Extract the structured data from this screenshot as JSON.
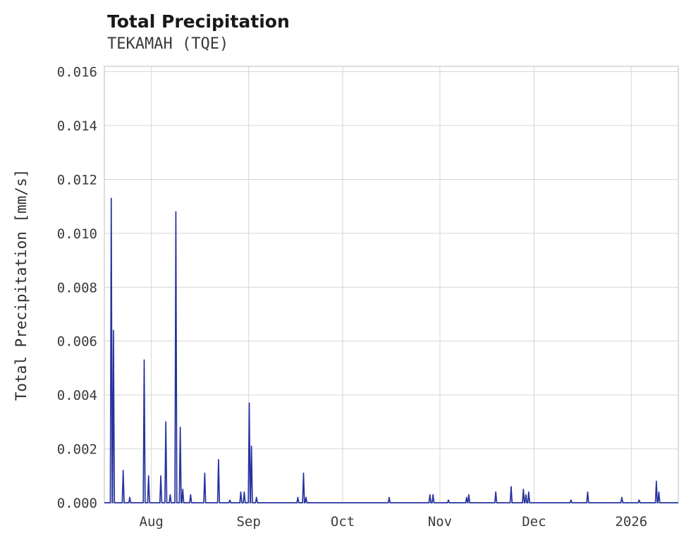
{
  "chart_data": {
    "type": "line",
    "title": "Total Precipitation",
    "subtitle": "TEKAMAH (TQE)",
    "ylabel": "Total Precipitation [mm/s]",
    "xlabel": "",
    "line_color": "#27339f",
    "grid_color": "#d6d6d6",
    "axis_color": "#c8c8c8",
    "text_color": "#3b3b3b",
    "grid": true,
    "legend": "none",
    "x_unit": "days from left edge of plot (mid-July 2025 to mid-January 2026)",
    "xlim": [
      0,
      183
    ],
    "ylim": [
      0,
      0.0162
    ],
    "xticks": [
      {
        "day": 15,
        "label": "Aug"
      },
      {
        "day": 46,
        "label": "Sep"
      },
      {
        "day": 76,
        "label": "Oct"
      },
      {
        "day": 107,
        "label": "Nov"
      },
      {
        "day": 137,
        "label": "Dec"
      },
      {
        "day": 168,
        "label": "2026"
      }
    ],
    "yticks": [
      0,
      0.002,
      0.004,
      0.006,
      0.008,
      0.01,
      0.012,
      0.014,
      0.016
    ],
    "ytick_labels": [
      "0.000",
      "0.002",
      "0.004",
      "0.006",
      "0.008",
      "0.010",
      "0.012",
      "0.014",
      "0.016"
    ],
    "baseline_value": 0,
    "points": [
      [
        2.2,
        0.0113
      ],
      [
        2.9,
        0.0064
      ],
      [
        6.0,
        0.0012
      ],
      [
        8.1,
        0.0002
      ],
      [
        12.7,
        0.0053
      ],
      [
        14.1,
        0.001
      ],
      [
        18.0,
        0.001
      ],
      [
        19.6,
        0.003
      ],
      [
        21.0,
        0.0003
      ],
      [
        22.8,
        0.0108
      ],
      [
        24.2,
        0.0028
      ],
      [
        25.0,
        0.0005
      ],
      [
        27.5,
        0.0003
      ],
      [
        32.0,
        0.0011
      ],
      [
        36.4,
        0.0016
      ],
      [
        40.0,
        0.0001
      ],
      [
        43.5,
        0.0004
      ],
      [
        44.6,
        0.0004
      ],
      [
        46.2,
        0.0037
      ],
      [
        46.9,
        0.0021
      ],
      [
        48.5,
        0.0002
      ],
      [
        61.7,
        0.0002
      ],
      [
        63.5,
        0.0011
      ],
      [
        64.3,
        0.0002
      ],
      [
        90.8,
        0.0002
      ],
      [
        103.8,
        0.0003
      ],
      [
        104.8,
        0.0003
      ],
      [
        109.7,
        0.0001
      ],
      [
        115.5,
        0.0002
      ],
      [
        116.2,
        0.0003
      ],
      [
        124.8,
        0.0004
      ],
      [
        129.7,
        0.0006
      ],
      [
        133.6,
        0.0005
      ],
      [
        134.4,
        0.0003
      ],
      [
        135.3,
        0.0004
      ],
      [
        148.8,
        0.0001
      ],
      [
        154.1,
        0.0004
      ],
      [
        165.0,
        0.0002
      ],
      [
        170.5,
        0.0001
      ],
      [
        176.0,
        0.0008
      ],
      [
        176.8,
        0.0004
      ]
    ]
  }
}
